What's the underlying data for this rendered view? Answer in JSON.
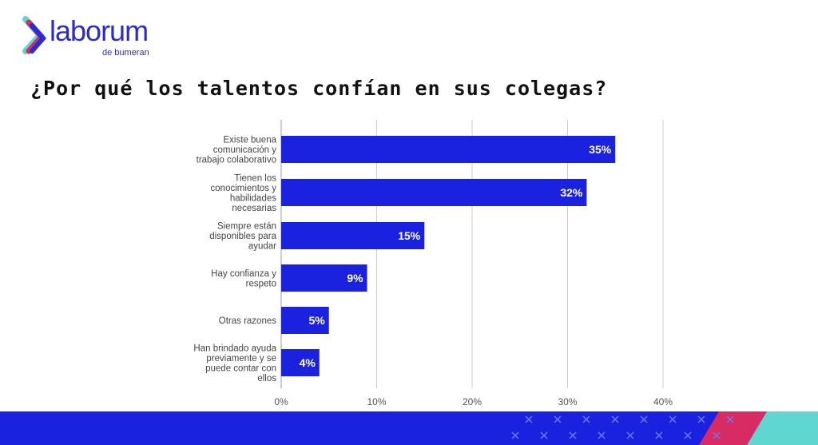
{
  "logo": {
    "name": "laborum",
    "sub": "de bumeran"
  },
  "colors": {
    "bar": "#1a22e0",
    "label": "#444444",
    "grid": "#cccccc",
    "footer_blue": "#1a22e0",
    "footer_pink": "#d92b63",
    "footer_teal": "#5fd6cf"
  },
  "chart_data": {
    "type": "bar",
    "orientation": "horizontal",
    "title": "¿Por qué los talentos confían en sus colegas?",
    "categories": [
      [
        "Existe buena",
        "comunicación y",
        "trabajo colaborativo"
      ],
      [
        "Tienen los",
        "conocimientos y",
        "habilidades",
        "necesarias"
      ],
      [
        "Siempre están",
        "disponibles para",
        "ayudar"
      ],
      [
        "Hay confianza y",
        "respeto"
      ],
      [
        "Otras razones"
      ],
      [
        "Han brindado ayuda",
        "previamente y se",
        "puede contar con",
        "ellos"
      ]
    ],
    "values": [
      35,
      32,
      15,
      9,
      5,
      4
    ],
    "data_labels": [
      "35%",
      "32%",
      "15%",
      "9%",
      "5%",
      "4%"
    ],
    "xlim": [
      0,
      40
    ],
    "xticks": [
      0,
      10,
      20,
      30,
      40
    ],
    "xtick_labels": [
      "0%",
      "10%",
      "20%",
      "30%",
      "40%"
    ],
    "grid": true,
    "xlabel": "",
    "ylabel": ""
  }
}
